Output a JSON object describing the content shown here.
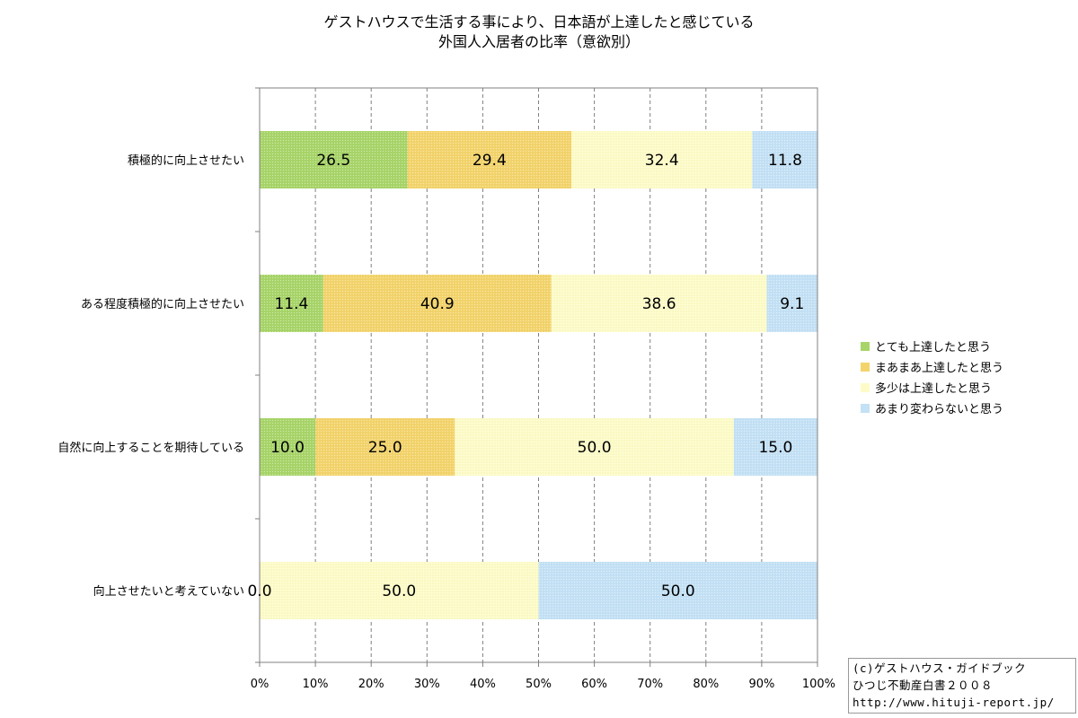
{
  "chart_data": {
    "type": "bar",
    "orientation": "horizontal",
    "stacked": true,
    "percent_stacked": true,
    "title": [
      "ゲストハウスで生活する事により、日本語が上達したと感じている",
      "外国人入居者の比率（意欲別）"
    ],
    "categories": [
      "積極的に向上させたい",
      "ある程度積極的に向上させたい",
      "自然に向上することを期待している",
      "向上させたいと考えていない"
    ],
    "series": [
      {
        "name": "とても上達したと思う",
        "color": "#a8d56a",
        "values": [
          26.5,
          11.4,
          10.0,
          0.0
        ]
      },
      {
        "name": "まあまあ上達したと思う",
        "color": "#f3d46c",
        "values": [
          29.4,
          40.9,
          25.0,
          0.0
        ]
      },
      {
        "name": "多少は上達したと思う",
        "color": "#fdfcc8",
        "values": [
          32.4,
          38.6,
          50.0,
          50.0
        ]
      },
      {
        "name": "あまり変わらないと思う",
        "color": "#c4e1f5",
        "values": [
          11.8,
          9.1,
          15.0,
          50.0
        ]
      }
    ],
    "data_labels": [
      [
        "26.5",
        "29.4",
        "32.4",
        "11.8"
      ],
      [
        "11.4",
        "40.9",
        "38.6",
        "9.1"
      ],
      [
        "10.0",
        "25.0",
        "50.0",
        "15.0"
      ],
      [
        "0.0",
        null,
        "50.0",
        "50.0"
      ]
    ],
    "x_ticks": [
      "0%",
      "10%",
      "20%",
      "30%",
      "40%",
      "50%",
      "60%",
      "70%",
      "80%",
      "90%",
      "100%"
    ],
    "xlim": [
      0,
      100
    ],
    "grid": "vertical dashed",
    "legend_position": "right"
  },
  "credit": {
    "line1": "(c)ゲストハウス・ガイドブック",
    "line2": "ひつじ不動産白書２００８",
    "line3": "http://www.hituji-report.jp/"
  }
}
